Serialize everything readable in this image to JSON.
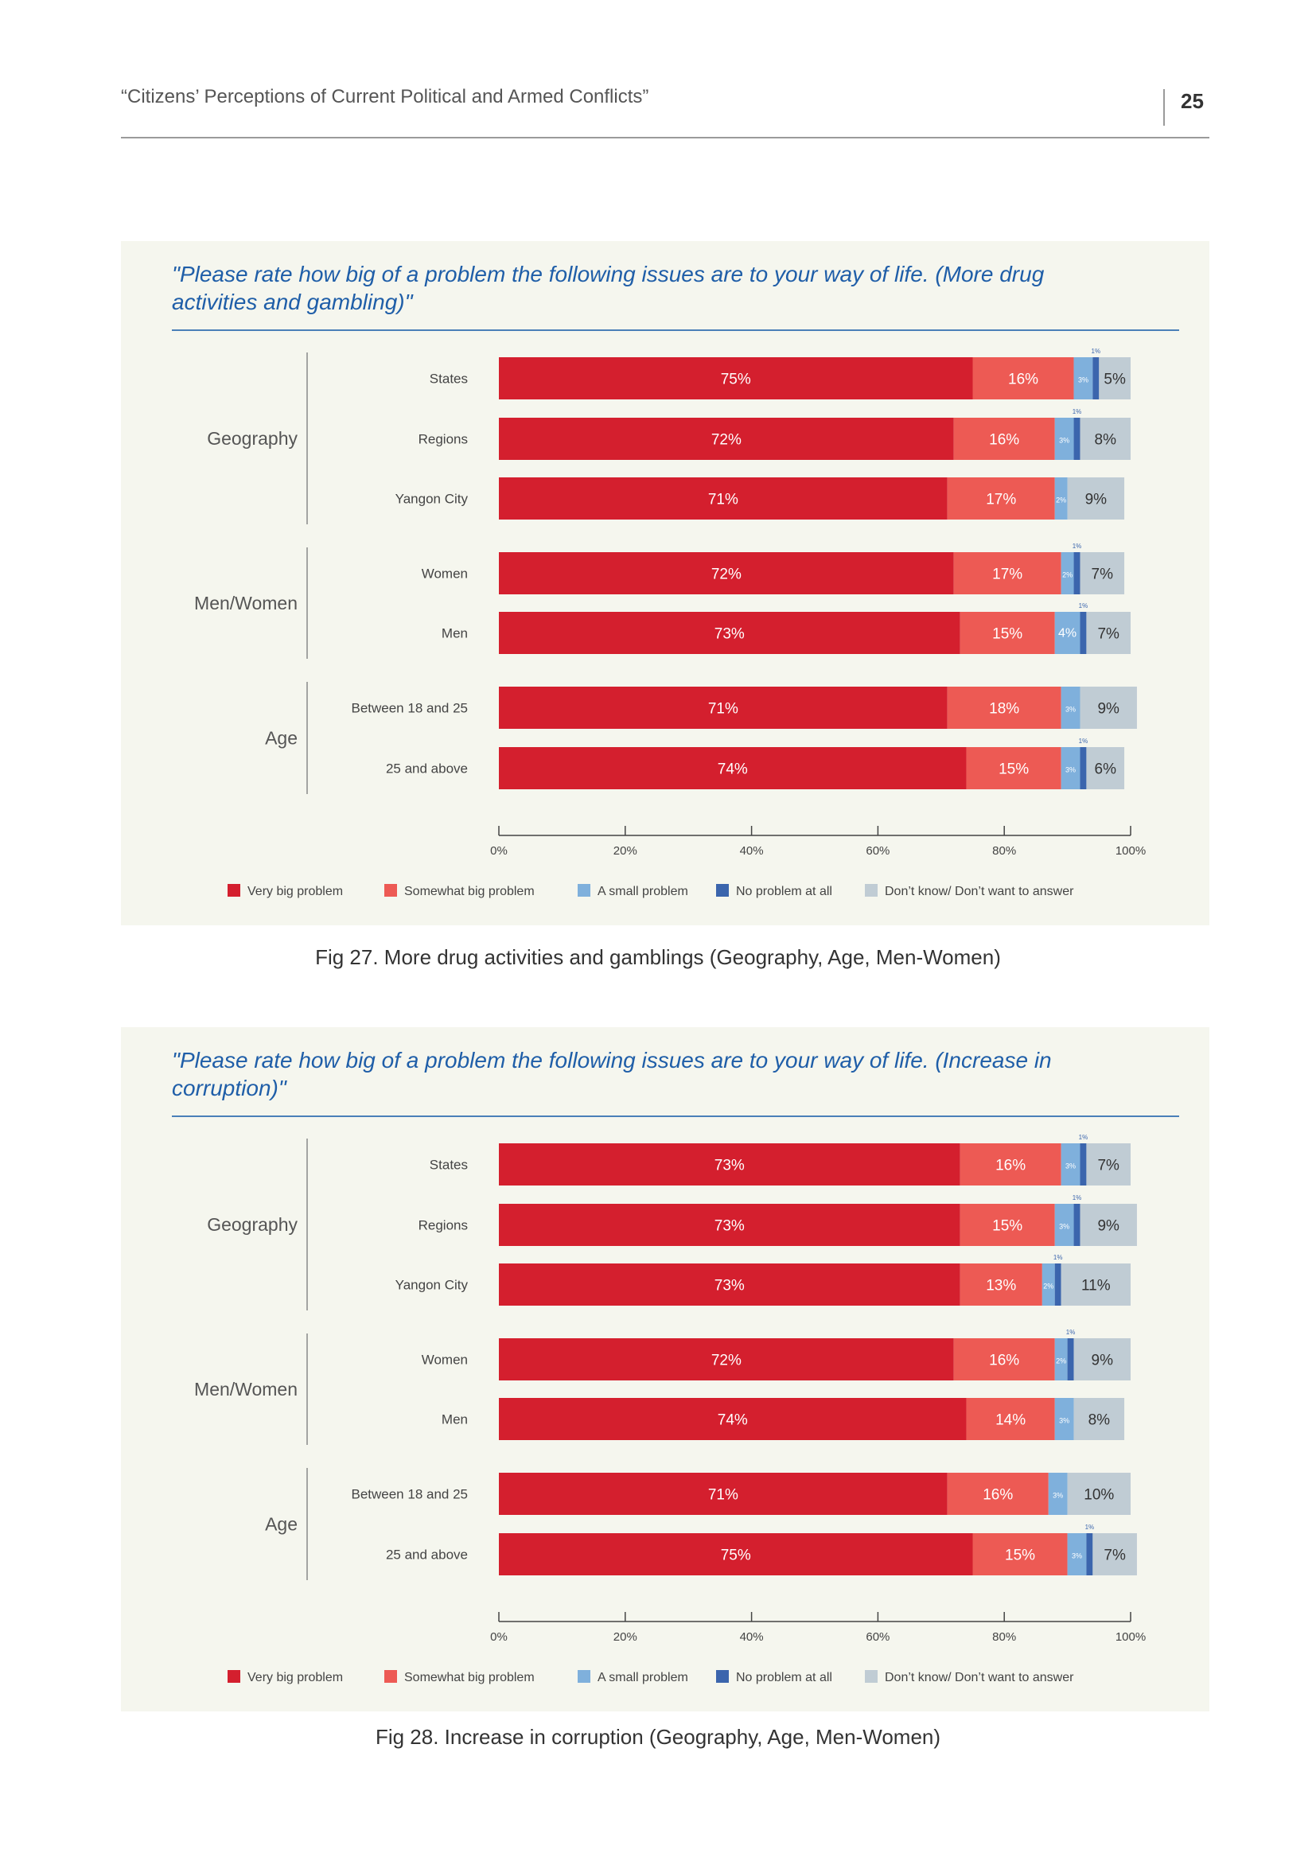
{
  "header": {
    "title": "“Citizens’ Perceptions of Current Political and Armed Conflicts”",
    "page_number": "25"
  },
  "legend": [
    {
      "label": "Very big problem",
      "color": "#d41f2e"
    },
    {
      "label": "Somewhat big problem",
      "color": "#ed5a54"
    },
    {
      "label": "A small problem",
      "color": "#7fb0dc"
    },
    {
      "label": "No problem at all",
      "color": "#3b65ad"
    },
    {
      "label": "Don’t know/ Don’t want to answer",
      "color": "#c0ccd4"
    }
  ],
  "colors": {
    "panel_bg": "#f5f6ee",
    "question_text": "#1f5ea8",
    "bar_label_light": "#ffffff",
    "bar_label_dark": "#333333"
  },
  "chart_data": [
    {
      "type": "bar",
      "orientation": "horizontal-stacked",
      "title": "\"Please rate how big of a problem the following issues are to your way of life. (More drug activities and gambling)\"",
      "caption": "Fig 27. More drug activities and gamblings (Geography, Age, Men-Women)",
      "xlim": [
        0,
        100
      ],
      "x_ticks": [
        "0%",
        "20%",
        "40%",
        "60%",
        "80%",
        "100%"
      ],
      "legend_position": "bottom",
      "groups": [
        {
          "name": "Geography",
          "rows": [
            {
              "label": "States",
              "values": [
                75,
                16,
                3,
                1,
                5
              ],
              "labels": [
                "75%",
                "16%",
                "3%",
                "1%",
                "5%"
              ]
            },
            {
              "label": "Regions",
              "values": [
                72,
                16,
                3,
                1,
                8
              ],
              "labels": [
                "72%",
                "16%",
                "3%",
                "1%",
                "8%"
              ]
            },
            {
              "label": "Yangon City",
              "values": [
                71,
                17,
                2,
                0,
                9
              ],
              "labels": [
                "71%",
                "17%",
                "2%",
                "",
                "9%"
              ]
            }
          ]
        },
        {
          "name": "Men/Women",
          "rows": [
            {
              "label": "Women",
              "values": [
                72,
                17,
                2,
                1,
                7
              ],
              "labels": [
                "72%",
                "17%",
                "2%",
                "1%",
                "7%"
              ]
            },
            {
              "label": "Men",
              "values": [
                73,
                15,
                4,
                1,
                7
              ],
              "labels": [
                "73%",
                "15%",
                "4%",
                "1%",
                "7%"
              ]
            }
          ]
        },
        {
          "name": "Age",
          "rows": [
            {
              "label": "Between 18 and 25",
              "values": [
                71,
                18,
                3,
                0,
                9
              ],
              "labels": [
                "71%",
                "18%",
                "3%",
                "",
                "9%"
              ]
            },
            {
              "label": "25 and above",
              "values": [
                74,
                15,
                3,
                1,
                6
              ],
              "labels": [
                "74%",
                "15%",
                "3%",
                "1%",
                "6%"
              ]
            }
          ]
        }
      ]
    },
    {
      "type": "bar",
      "orientation": "horizontal-stacked",
      "title": "\"Please rate how big of a problem the following issues are to your way of life. (Increase in corruption)\"",
      "caption": "Fig 28. Increase in corruption (Geography, Age, Men-Women)",
      "xlim": [
        0,
        100
      ],
      "x_ticks": [
        "0%",
        "20%",
        "40%",
        "60%",
        "80%",
        "100%"
      ],
      "legend_position": "bottom",
      "groups": [
        {
          "name": "Geography",
          "rows": [
            {
              "label": "States",
              "values": [
                73,
                16,
                3,
                1,
                7
              ],
              "labels": [
                "73%",
                "16%",
                "3%",
                "1%",
                "7%"
              ]
            },
            {
              "label": "Regions",
              "values": [
                73,
                15,
                3,
                1,
                9
              ],
              "labels": [
                "73%",
                "15%",
                "3%",
                "1%",
                "9%"
              ]
            },
            {
              "label": "Yangon City",
              "values": [
                73,
                13,
                2,
                1,
                11
              ],
              "labels": [
                "73%",
                "13%",
                "2%",
                "1%",
                "11%"
              ]
            }
          ]
        },
        {
          "name": "Men/Women",
          "rows": [
            {
              "label": "Women",
              "values": [
                72,
                16,
                2,
                1,
                9
              ],
              "labels": [
                "72%",
                "16%",
                "2%",
                "1%",
                "9%"
              ]
            },
            {
              "label": "Men",
              "values": [
                74,
                14,
                3,
                0,
                8
              ],
              "labels": [
                "74%",
                "14%",
                "3%",
                "",
                "8%"
              ]
            }
          ]
        },
        {
          "name": "Age",
          "rows": [
            {
              "label": "Between 18 and 25",
              "values": [
                71,
                16,
                3,
                0,
                10
              ],
              "labels": [
                "71%",
                "16%",
                "3%",
                "",
                "10%"
              ]
            },
            {
              "label": "25 and above",
              "values": [
                75,
                15,
                3,
                1,
                7
              ],
              "labels": [
                "75%",
                "15%",
                "3%",
                "1%",
                "7%"
              ]
            }
          ]
        }
      ]
    }
  ]
}
